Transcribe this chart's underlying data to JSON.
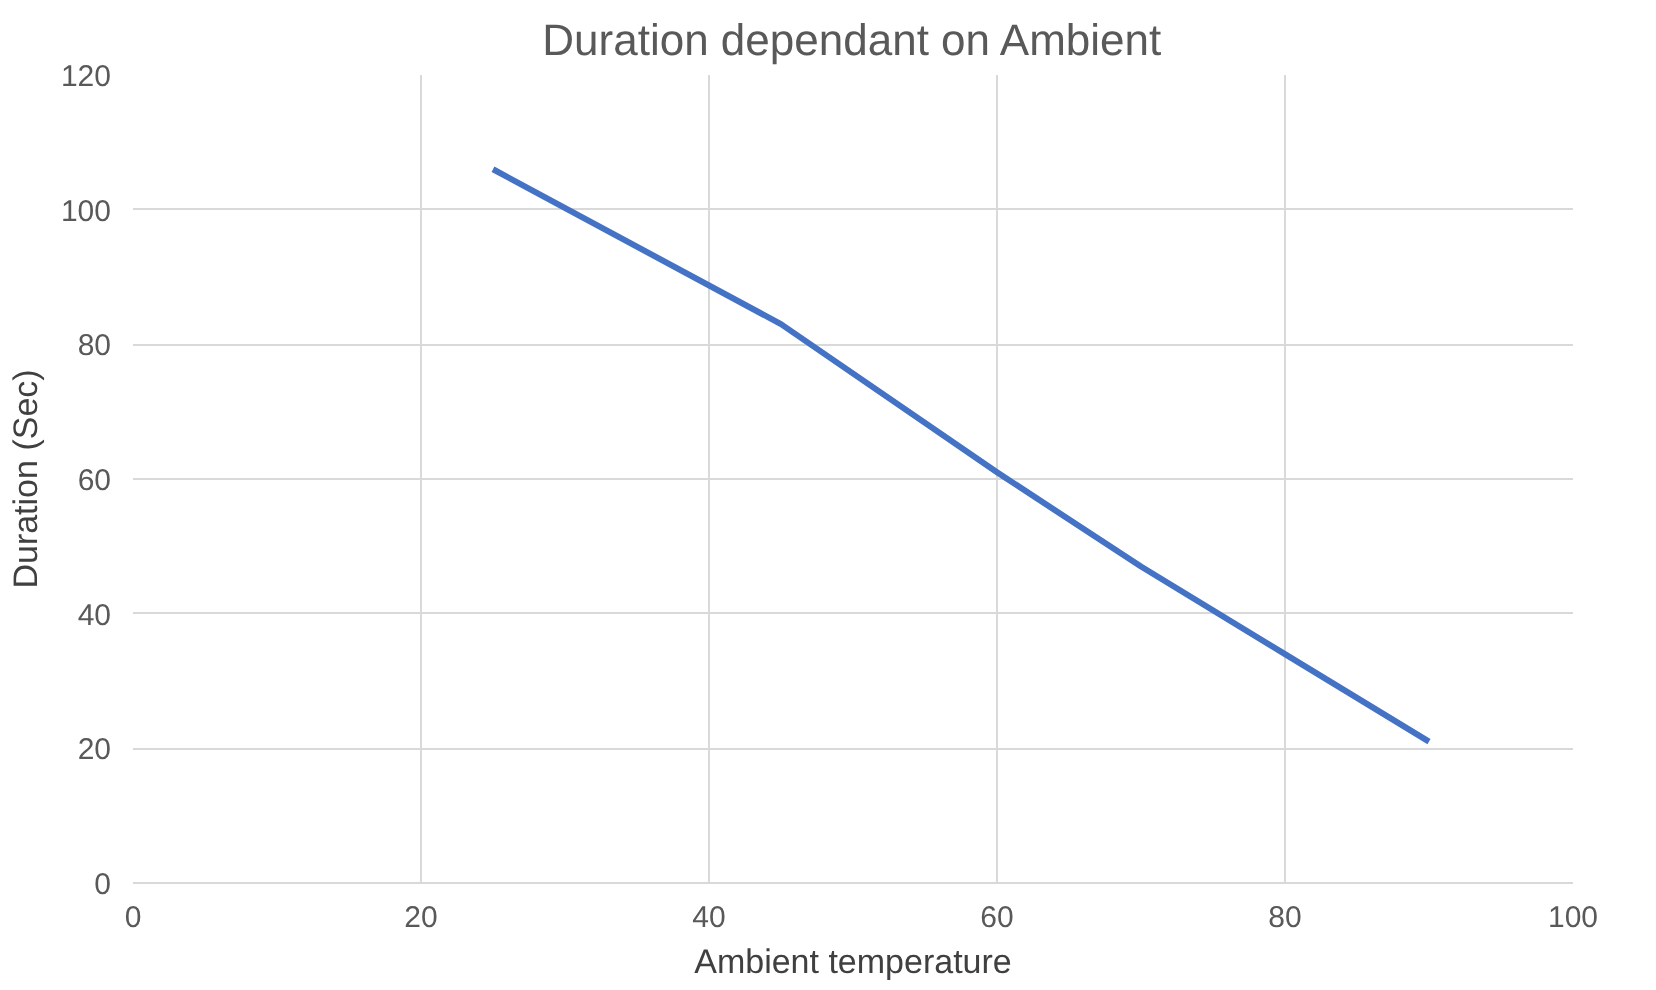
{
  "chart_data": {
    "type": "line",
    "title": "Duration dependant on Ambient",
    "xlabel": "Ambient temperature",
    "ylabel": "Duration (Sec)",
    "x": [
      25,
      45,
      60,
      70,
      80,
      90
    ],
    "series": [
      {
        "color": "#4472c4",
        "values": [
          106,
          83,
          61,
          47,
          34,
          21
        ]
      }
    ],
    "xlim": [
      0,
      100
    ],
    "xticks": [
      0,
      20,
      40,
      60,
      80,
      100
    ],
    "ylim": [
      0,
      120
    ],
    "yticks": [
      0,
      20,
      40,
      60,
      80,
      100,
      120
    ],
    "grid": true,
    "marker": "none",
    "line_style": "solid"
  }
}
